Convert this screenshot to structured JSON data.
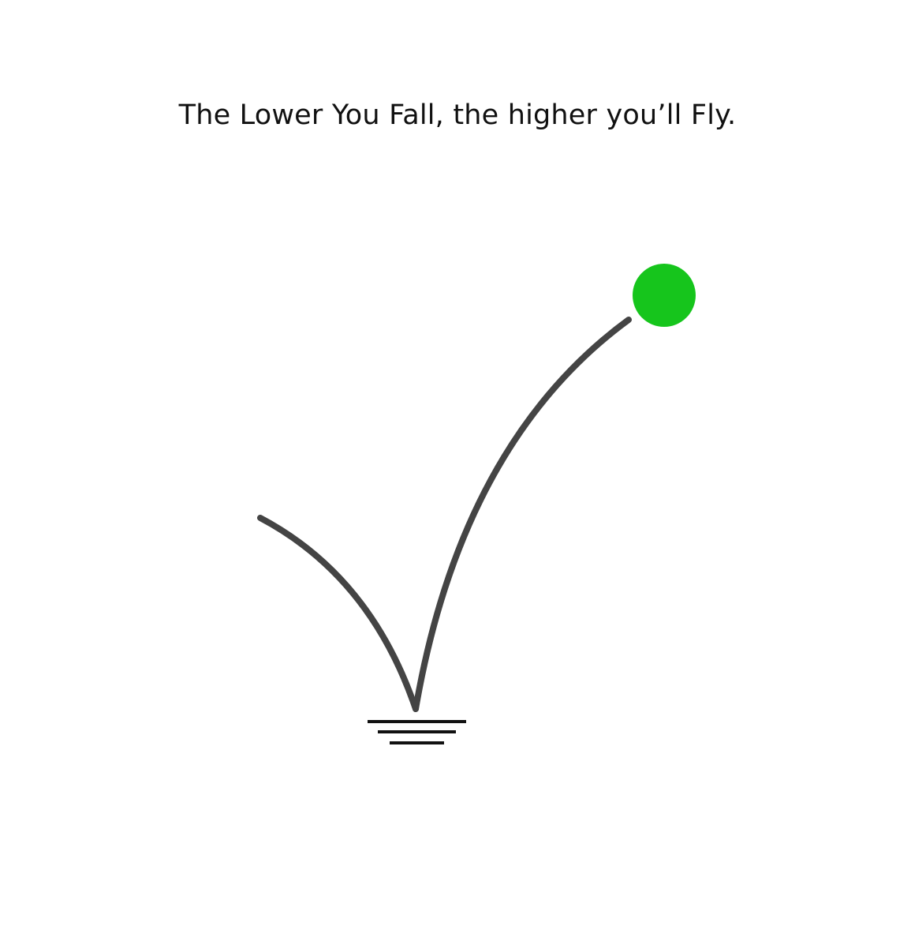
{
  "headline": "The Lower You Fall, the higher you’ll Fly.",
  "colors": {
    "background": "#ffffff",
    "text": "#111111",
    "trajectory": "#444444",
    "ground": "#111111",
    "ball": "#16c51c"
  },
  "icons": {
    "ball": "green-ball-icon",
    "ground": "ground-lines-icon"
  }
}
